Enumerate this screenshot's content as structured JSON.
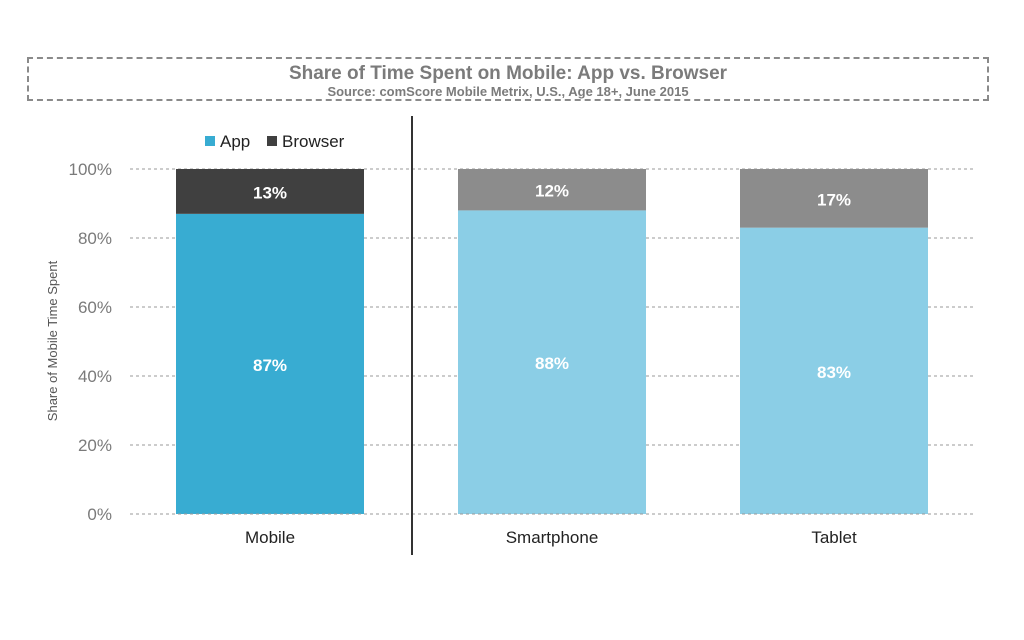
{
  "chart_data": {
    "type": "bar",
    "stacked": true,
    "title": "Share of Time Spent on Mobile: App vs. Browser",
    "subtitle": "Source: comScore Mobile Metrix, U.S., Age 18+, June 2015",
    "ylabel": "Share of Mobile Time Spent",
    "ylim": [
      0,
      100
    ],
    "yticks": [
      "0%",
      "20%",
      "40%",
      "60%",
      "80%",
      "100%"
    ],
    "ytick_values": [
      0,
      20,
      40,
      60,
      80,
      100
    ],
    "grid": "dashed horizontal",
    "legend_position": "top-left",
    "categories": [
      "Mobile",
      "Smartphone",
      "Tablet"
    ],
    "series": [
      {
        "name": "App",
        "values": [
          87,
          88,
          83
        ],
        "labels": [
          "87%",
          "88%",
          "83%"
        ],
        "colors": [
          "#38acd2",
          "#8bcee6",
          "#8bcee6"
        ]
      },
      {
        "name": "Browser",
        "values": [
          13,
          12,
          17
        ],
        "labels": [
          "13%",
          "12%",
          "17%"
        ],
        "colors": [
          "#404040",
          "#8c8c8c",
          "#8c8c8c"
        ]
      }
    ],
    "legend": [
      {
        "name": "App",
        "color": "#38acd2"
      },
      {
        "name": "Browser",
        "color": "#404040"
      }
    ]
  }
}
